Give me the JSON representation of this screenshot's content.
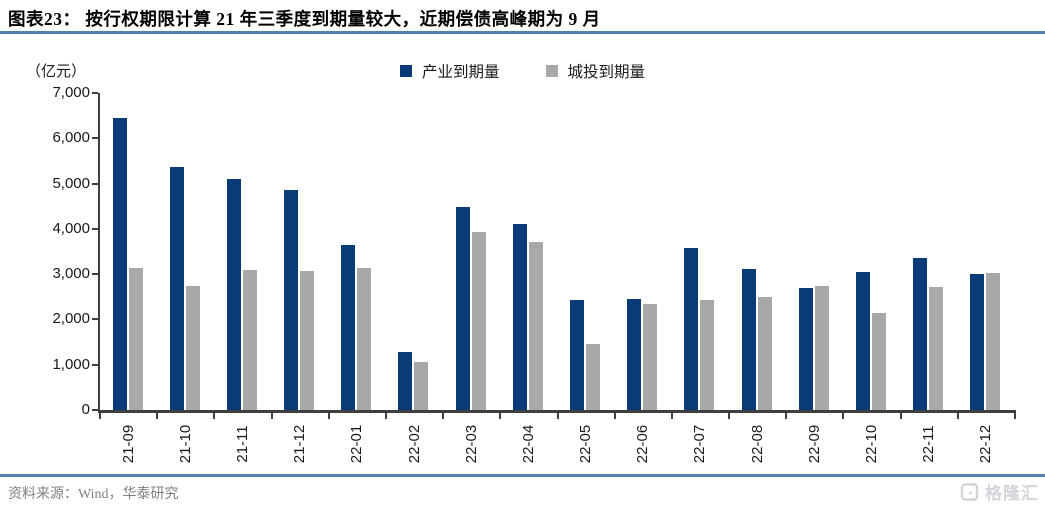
{
  "header": {
    "title": "图表23：  按行权期限计算 21 年三季度到期量较大，近期偿债高峰期为 9 月"
  },
  "chart_data": {
    "type": "bar",
    "title": "按行权期限计算 21 年三季度到期量较大，近期偿债高峰期为 9 月",
    "unit_label": "（亿元）",
    "xlabel": "",
    "ylabel": "（亿元）",
    "ylim": [
      0,
      7000
    ],
    "ytick_step": 1000,
    "ytick_labels": [
      "0",
      "1,000",
      "2,000",
      "3,000",
      "4,000",
      "5,000",
      "6,000",
      "7,000"
    ],
    "grid": false,
    "legend_position": "top-center",
    "categories": [
      "21-09",
      "21-10",
      "21-11",
      "21-12",
      "22-01",
      "22-02",
      "22-03",
      "22-04",
      "22-05",
      "22-06",
      "22-07",
      "22-08",
      "22-09",
      "22-10",
      "22-11",
      "22-12"
    ],
    "series": [
      {
        "name": "产业到期量",
        "color": "#0a3b76",
        "values": [
          6440,
          5370,
          5100,
          4860,
          3640,
          1270,
          4480,
          4100,
          2430,
          2450,
          3570,
          3110,
          2700,
          3050,
          3360,
          3000
        ]
      },
      {
        "name": "城投到期量",
        "color": "#a8a8a8",
        "values": [
          3130,
          2740,
          3090,
          3080,
          3140,
          1070,
          3920,
          3700,
          1450,
          2340,
          2440,
          2490,
          2740,
          2150,
          2710,
          3020
        ]
      }
    ]
  },
  "footer": {
    "source": "资料来源：Wind，华泰研究"
  },
  "watermark": {
    "text": "格隆汇"
  },
  "colors": {
    "accent_rule": "#5580ad",
    "axis": "#3f3f3f",
    "watermark": "#d2d5d9"
  }
}
